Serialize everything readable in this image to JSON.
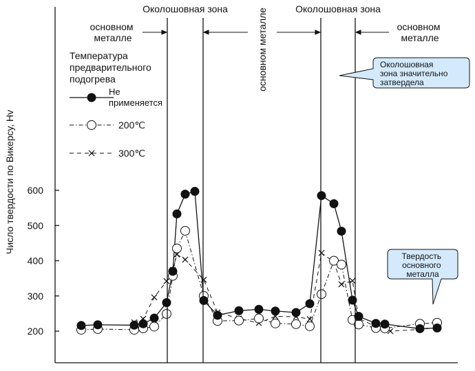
{
  "chart_data": {
    "type": "line",
    "title": "",
    "xlabel": "",
    "ylabel": "Число твердости по Викерсу, Hv",
    "ylim": [
      200,
      600
    ],
    "yticks": [
      200,
      300,
      400,
      500,
      600
    ],
    "grid": false,
    "legend_title": [
      "Температура",
      "предварительного",
      "подогрева"
    ],
    "zones": {
      "haz_left": "Околошовная зона",
      "haz_right": "Околошовная зона",
      "base_left": [
        "основном",
        "металле"
      ],
      "base_middle": "основном металле",
      "base_right": [
        "основном",
        "металле"
      ]
    },
    "x": [
      1,
      2,
      3,
      4,
      5,
      6,
      7,
      8,
      9,
      10,
      11,
      12,
      13,
      14,
      15,
      16,
      17,
      18,
      19,
      20,
      21,
      22,
      23,
      24,
      25,
      26,
      27,
      28,
      29,
      30,
      31,
      32
    ],
    "series": [
      {
        "name": "Не применяется",
        "name_lines": [
          "Не",
          "применяется"
        ],
        "marker": "filled-circle",
        "line_style": "solid",
        "points": [
          [
            1,
            216
          ],
          [
            2,
            218
          ],
          [
            4,
            217
          ],
          [
            5,
            221
          ],
          [
            6,
            237
          ],
          [
            7,
            281
          ],
          [
            8,
            370
          ],
          [
            9,
            533
          ],
          [
            10,
            589
          ],
          [
            11,
            597
          ],
          [
            12,
            287
          ],
          [
            13,
            245
          ],
          [
            14,
            258
          ],
          [
            15,
            262
          ],
          [
            16,
            257
          ],
          [
            17,
            253
          ],
          [
            18,
            278
          ],
          [
            19,
            585
          ],
          [
            20,
            562
          ],
          [
            21,
            484
          ],
          [
            22,
            288
          ],
          [
            23,
            242
          ],
          [
            24,
            222
          ],
          [
            25,
            220
          ],
          [
            27,
            207
          ],
          [
            28,
            209
          ]
        ]
      },
      {
        "name": "200℃",
        "marker": "open-circle",
        "line_style": "dash-dot",
        "points": [
          [
            1,
            204
          ],
          [
            2,
            206
          ],
          [
            4,
            204
          ],
          [
            5,
            208
          ],
          [
            6,
            213
          ],
          [
            7,
            249
          ],
          [
            8,
            357
          ],
          [
            9,
            435
          ],
          [
            10,
            485
          ],
          [
            12,
            300
          ],
          [
            13,
            229
          ],
          [
            14,
            230
          ],
          [
            15,
            236
          ],
          [
            16,
            222
          ],
          [
            17,
            220
          ],
          [
            18,
            214
          ],
          [
            19,
            305
          ],
          [
            20,
            400
          ],
          [
            21,
            389
          ],
          [
            22,
            232
          ],
          [
            23,
            219
          ],
          [
            24,
            209
          ],
          [
            25,
            208
          ],
          [
            27,
            221
          ],
          [
            28,
            224
          ]
        ]
      },
      {
        "name": "300℃",
        "marker": "cross",
        "line_style": "dashed",
        "points": [
          [
            4,
            225
          ],
          [
            5,
            235
          ],
          [
            6,
            296
          ],
          [
            7,
            342
          ],
          [
            8,
            374
          ],
          [
            9,
            418
          ],
          [
            10,
            403
          ],
          [
            12,
            346
          ],
          [
            13,
            253
          ],
          [
            14,
            236
          ],
          [
            15,
            223
          ],
          [
            16,
            242
          ],
          [
            17,
            241
          ],
          [
            18,
            234
          ],
          [
            19,
            422
          ],
          [
            20,
            397
          ],
          [
            21,
            333
          ],
          [
            22,
            343
          ],
          [
            23,
            236
          ],
          [
            24,
            213
          ],
          [
            25,
            210
          ],
          [
            26,
            200
          ],
          [
            27,
            205
          ],
          [
            28,
            210
          ]
        ]
      }
    ],
    "callouts": [
      {
        "text": [
          "Околошовная",
          "зона значительно",
          "затвердела"
        ],
        "target_series": "Не применяется",
        "target_x": 20
      },
      {
        "text": [
          "Твердость",
          "основного",
          "металла"
        ],
        "target_series": "200℃",
        "target_x": 28
      }
    ]
  }
}
